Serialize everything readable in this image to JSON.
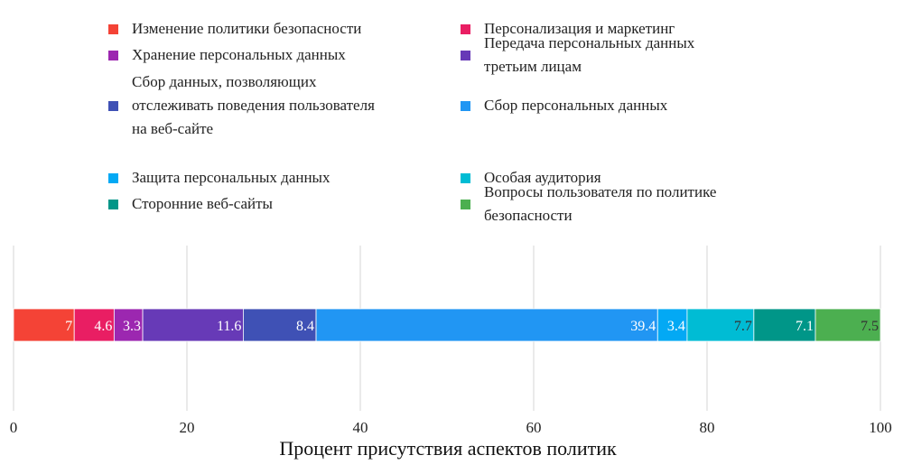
{
  "chart_data": {
    "type": "bar",
    "orientation": "horizontal",
    "stacked": true,
    "xlabel": "Процент присутствия аспектов политик",
    "ylabel": "",
    "xlim": [
      0,
      100
    ],
    "xticks": [
      0,
      20,
      40,
      60,
      80,
      100
    ],
    "grid": "vertical",
    "legend_position": "top",
    "series": [
      {
        "name": "Изменение политики безопасности",
        "value": 7,
        "label": "7",
        "color": "#F44336",
        "label_color": "#ffffff"
      },
      {
        "name": "Персонализация и маркетинг",
        "value": 4.6,
        "label": "4.6",
        "color": "#E91E63",
        "label_color": "#ffffff"
      },
      {
        "name": "Хранение персональных данных",
        "value": 3.3,
        "label": "3.3",
        "color": "#9C27B0",
        "label_color": "#ffffff"
      },
      {
        "name": "Передача персональных данных третьим лицам",
        "value": 11.6,
        "label": "11.6",
        "color": "#673AB7",
        "label_color": "#ffffff"
      },
      {
        "name": "Сбор данных, позволяющих отслеживать поведения пользователя на веб-сайте",
        "value": 8.4,
        "label": "8.4",
        "color": "#3F51B5",
        "label_color": "#ffffff"
      },
      {
        "name": "Сбор персональных данных",
        "value": 39.4,
        "label": "39.4",
        "color": "#2196F3",
        "label_color": "#ffffff"
      },
      {
        "name": "Защита персональных данных",
        "value": 3.4,
        "label": "3.4",
        "color": "#03A9F4",
        "label_color": "#ffffff"
      },
      {
        "name": "Особая аудитория",
        "value": 7.7,
        "label": "7.7",
        "color": "#00BCD4",
        "label_color": "#333333"
      },
      {
        "name": "Сторонние веб-сайты",
        "value": 7.1,
        "label": "7.1",
        "color": "#009688",
        "label_color": "#ffffff"
      },
      {
        "name": "Вопросы пользователя по политике безопасности",
        "value": 7.5,
        "label": "7.5",
        "color": "#4CAF50",
        "label_color": "#333333"
      }
    ]
  },
  "legend": {
    "items": [
      {
        "lines": [
          "Изменение политики безопасности"
        ],
        "color": "#F44336"
      },
      {
        "lines": [
          "Персонализация и маркетинг"
        ],
        "color": "#E91E63"
      },
      {
        "lines": [
          "Хранение персональных данных"
        ],
        "color": "#9C27B0"
      },
      {
        "lines": [
          "Передача персональных данных",
          "третьим лицам"
        ],
        "color": "#673AB7"
      },
      {
        "lines": [
          "Сбор данных, позволяющих",
          "отслеживать поведения пользователя",
          "на веб-сайте"
        ],
        "color": "#3F51B5"
      },
      {
        "lines": [
          "Сбор персональных данных"
        ],
        "color": "#2196F3"
      },
      {
        "lines": [
          "Защита персональных данных"
        ],
        "color": "#03A9F4"
      },
      {
        "lines": [
          "Особая аудитория"
        ],
        "color": "#00BCD4"
      },
      {
        "lines": [
          "Сторонние веб-сайты"
        ],
        "color": "#009688"
      },
      {
        "lines": [
          "Вопросы пользователя по политике",
          "безопасности"
        ],
        "color": "#4CAF50"
      }
    ]
  }
}
